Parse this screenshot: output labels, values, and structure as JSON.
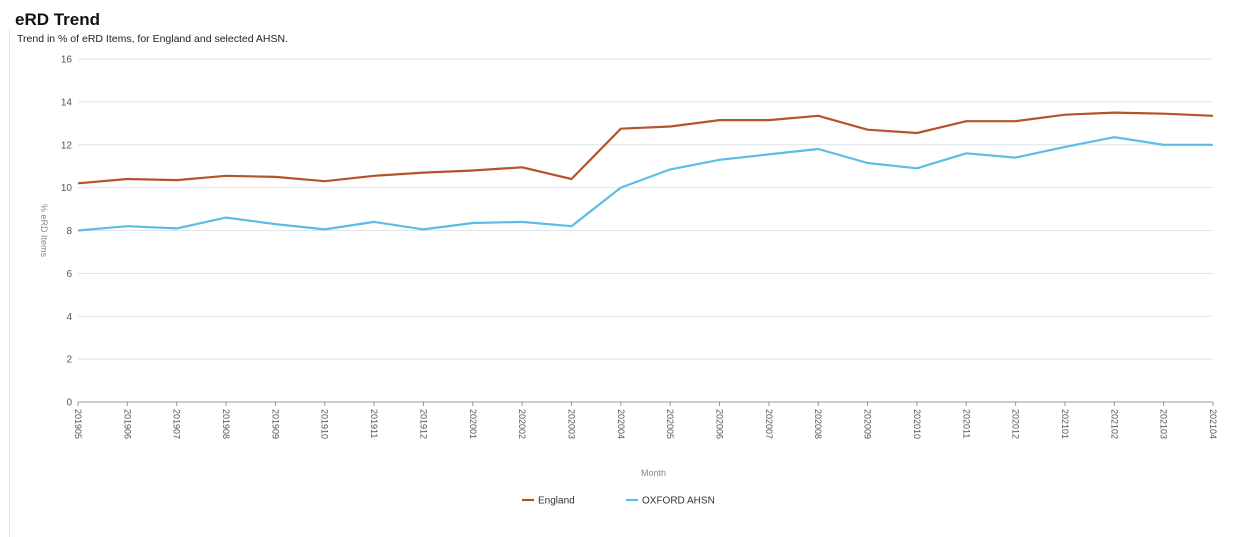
{
  "title": "eRD Trend",
  "subtitle": "Trend in % of eRD Items, for England and selected AHSN.",
  "chart_data": {
    "type": "line",
    "xlabel": "Month",
    "ylabel": "% eRD Items",
    "ylim": [
      0,
      16
    ],
    "yticks": [
      0,
      2,
      4,
      6,
      8,
      10,
      12,
      14,
      16
    ],
    "grid": true,
    "legend_position": "bottom-center",
    "categories": [
      "201905",
      "201906",
      "201907",
      "201908",
      "201909",
      "201910",
      "201911",
      "201912",
      "202001",
      "202002",
      "202003",
      "202004",
      "202005",
      "202006",
      "202007",
      "202008",
      "202009",
      "202010",
      "202011",
      "202012",
      "202101",
      "202102",
      "202103",
      "202104"
    ],
    "series": [
      {
        "name": "England",
        "color": "#b5532a",
        "values": [
          10.2,
          10.4,
          10.35,
          10.55,
          10.5,
          10.3,
          10.55,
          10.7,
          10.8,
          10.95,
          10.4,
          12.75,
          12.85,
          13.15,
          13.15,
          13.35,
          12.7,
          12.55,
          13.1,
          13.1,
          13.4,
          13.5,
          13.45,
          13.35
        ]
      },
      {
        "name": "OXFORD AHSN",
        "color": "#5bbde6",
        "values": [
          8.0,
          8.2,
          8.1,
          8.6,
          8.3,
          8.05,
          8.4,
          8.05,
          8.35,
          8.4,
          8.2,
          10.0,
          10.85,
          11.3,
          11.55,
          11.8,
          11.15,
          10.9,
          11.6,
          11.4,
          11.9,
          12.35,
          12.0,
          12.0
        ]
      }
    ]
  }
}
